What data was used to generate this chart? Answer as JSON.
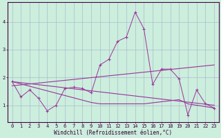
{
  "xlabel": "Windchill (Refroidissement éolien,°C)",
  "bg_color": "#cceedd",
  "grid_color": "#aabbcc",
  "line_color": "#993399",
  "xlim": [
    -0.5,
    23.5
  ],
  "ylim": [
    0.4,
    4.7
  ],
  "xticks": [
    0,
    1,
    2,
    3,
    4,
    5,
    6,
    7,
    8,
    9,
    10,
    11,
    12,
    13,
    14,
    15,
    16,
    17,
    18,
    19,
    20,
    21,
    22,
    23
  ],
  "yticks": [
    1,
    2,
    3,
    4
  ],
  "main_x": [
    0,
    1,
    2,
    3,
    4,
    5,
    6,
    7,
    8,
    9,
    10,
    11,
    12,
    13,
    14,
    15,
    16,
    17,
    18,
    19,
    20,
    21,
    22,
    23
  ],
  "main_y": [
    1.85,
    1.3,
    1.55,
    1.25,
    0.8,
    1.0,
    1.6,
    1.65,
    1.6,
    1.45,
    2.45,
    2.65,
    3.3,
    3.45,
    4.35,
    3.75,
    1.75,
    2.3,
    2.3,
    1.95,
    0.65,
    1.55,
    1.05,
    0.9
  ],
  "trend1_x": [
    0,
    23
  ],
  "trend1_y": [
    1.7,
    2.45
  ],
  "trend2_x": [
    0,
    23
  ],
  "trend2_y": [
    1.85,
    1.0
  ],
  "flat_x": [
    0,
    9,
    10,
    14,
    15,
    19,
    20,
    23
  ],
  "flat_y": [
    1.85,
    1.1,
    1.05,
    1.05,
    1.05,
    1.2,
    1.05,
    0.9
  ]
}
